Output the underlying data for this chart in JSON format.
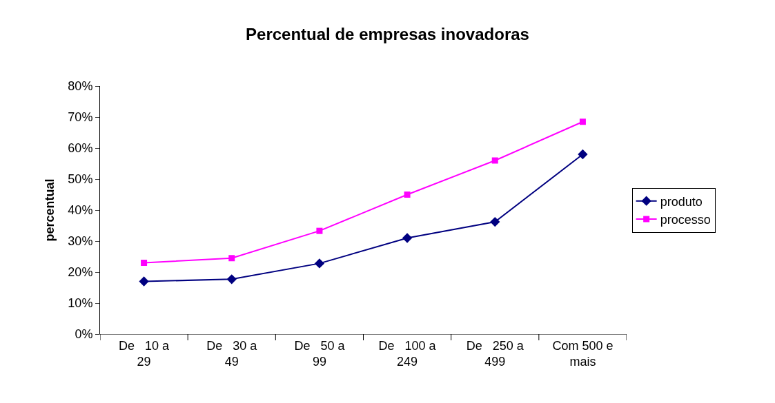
{
  "chart_data": {
    "type": "line",
    "title": "Percentual de empresas inovadoras",
    "ylabel": "percentual",
    "categories": [
      "De   10 a\n29",
      "De   30 a\n49",
      "De   50 a\n99",
      "De   100 a\n249",
      "De   250 a\n499",
      "Com 500 e\nmais"
    ],
    "series": [
      {
        "name": "produto",
        "color": "#000080",
        "marker": "diamond",
        "values": [
          17,
          17.7,
          22.8,
          31,
          36.2,
          58
        ]
      },
      {
        "name": "processo",
        "color": "#ff00ff",
        "marker": "square",
        "values": [
          23,
          24.5,
          33.3,
          45,
          56,
          68.5
        ]
      }
    ],
    "ylim": [
      0,
      80
    ],
    "yticks": [
      {
        "value": 0,
        "label": "0%"
      },
      {
        "value": 10,
        "label": "10%"
      },
      {
        "value": 20,
        "label": "20%"
      },
      {
        "value": 30,
        "label": "30%"
      },
      {
        "value": 40,
        "label": "40%"
      },
      {
        "value": 50,
        "label": "50%"
      },
      {
        "value": 60,
        "label": "60%"
      },
      {
        "value": 70,
        "label": "70%"
      },
      {
        "value": 80,
        "label": "80%"
      }
    ],
    "legend": "right",
    "line_style": "solid"
  }
}
